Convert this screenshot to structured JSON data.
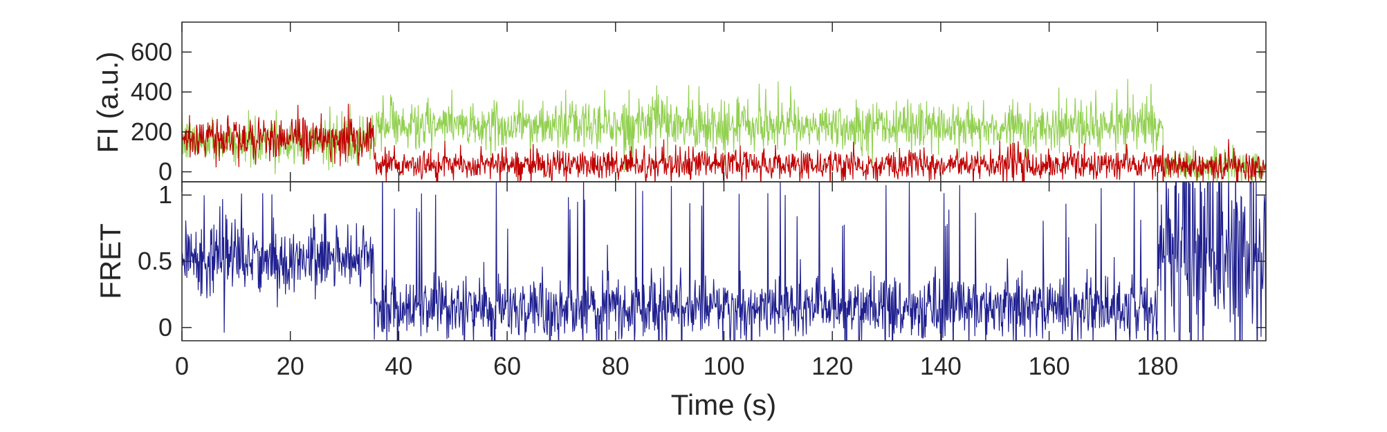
{
  "chart_data": [
    {
      "type": "line",
      "panel": "top",
      "ylabel": "FI (a.u.)",
      "xlim": [
        0,
        200
      ],
      "ylim": [
        -50,
        750
      ],
      "yticks": [
        0,
        200,
        400,
        600
      ],
      "ytick_labels": [
        "0",
        "200",
        "400",
        "600"
      ],
      "grid": false,
      "legend": "none",
      "series": [
        {
          "color": "#92d050",
          "segments": [
            {
              "t_start": 0,
              "t_end": 35.5,
              "mean": 150,
              "noise": 55,
              "spike_prob": 0.03,
              "spike_height": 140
            },
            {
              "t_start": 35.5,
              "t_end": 181,
              "mean": 230,
              "noise": 60,
              "spike_prob": 0.04,
              "spike_height": 170
            },
            {
              "t_start": 181,
              "t_end": 200,
              "mean": 30,
              "noise": 40,
              "spike_prob": 0.03,
              "spike_height": 90
            }
          ]
        },
        {
          "color": "#c00000",
          "segments": [
            {
              "t_start": 0,
              "t_end": 35.5,
              "mean": 165,
              "noise": 55,
              "spike_prob": 0.03,
              "spike_height": 140
            },
            {
              "t_start": 35.5,
              "t_end": 181,
              "mean": 35,
              "noise": 38,
              "spike_prob": 0.03,
              "spike_height": 90
            },
            {
              "t_start": 181,
              "t_end": 200,
              "mean": 25,
              "noise": 38,
              "spike_prob": 0.03,
              "spike_height": 80
            }
          ]
        }
      ]
    },
    {
      "type": "line",
      "panel": "bottom",
      "xlabel": "Time (s)",
      "ylabel": "FRET",
      "xlim": [
        0,
        200
      ],
      "ylim": [
        -0.1,
        1.1
      ],
      "xticks": [
        0,
        20,
        40,
        60,
        80,
        100,
        120,
        140,
        160,
        180
      ],
      "xtick_labels": [
        "0",
        "20",
        "40",
        "60",
        "80",
        "100",
        "120",
        "140",
        "160",
        "180"
      ],
      "yticks": [
        0,
        0.5,
        1
      ],
      "ytick_labels": [
        "0",
        "0.5",
        "1"
      ],
      "grid": false,
      "legend": "none",
      "series": [
        {
          "color": "#1f1f8f",
          "segments": [
            {
              "t_start": 0,
              "t_end": 35.5,
              "mean": 0.52,
              "noise": 0.13,
              "spike_prob": 0.04,
              "spike_height": 0.45
            },
            {
              "t_start": 35.5,
              "t_end": 180,
              "mean": 0.14,
              "noise": 0.12,
              "spike_prob": 0.05,
              "spike_height": 1.0
            },
            {
              "t_start": 180,
              "t_end": 200,
              "mean": 0.55,
              "noise": 0.35,
              "spike_prob": 0.12,
              "spike_height": 0.8
            }
          ]
        }
      ]
    }
  ]
}
